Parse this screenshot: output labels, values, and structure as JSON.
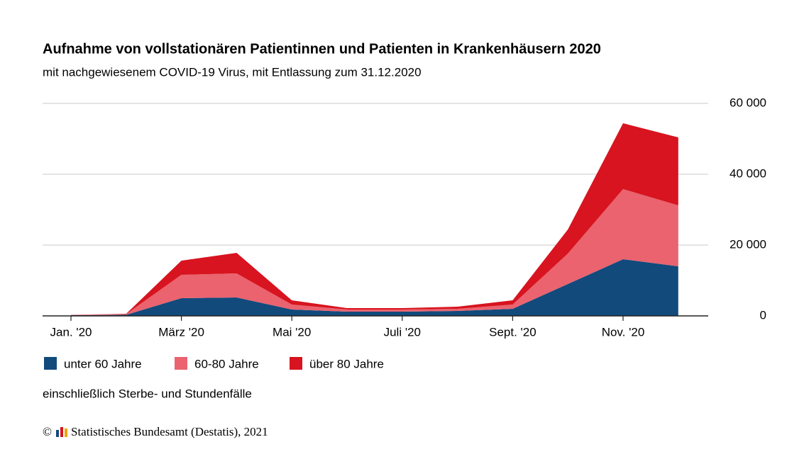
{
  "chart_data": {
    "type": "stacked_area",
    "title": "Aufnahme von vollstationären Patientinnen und Patienten in Krankenhäusern 2020",
    "subtitle": "mit nachgewiesenem COVID-19 Virus, mit Entlassung zum 31.12.2020",
    "categories": [
      "Jan. '20",
      null,
      "März '20",
      null,
      "Mai '20",
      null,
      "Juli '20",
      null,
      "Sept. '20",
      null,
      "Nov. '20",
      null
    ],
    "series": [
      {
        "name": "unter 60 Jahre",
        "color": "#124a7c",
        "values": [
          200,
          300,
          5000,
          5200,
          1800,
          1200,
          1200,
          1400,
          2000,
          9000,
          16000,
          14000
        ]
      },
      {
        "name": "60-80 Jahre",
        "color": "#ea636f",
        "values": [
          100,
          200,
          6600,
          6800,
          1400,
          600,
          600,
          600,
          1200,
          8600,
          19800,
          17200
        ]
      },
      {
        "name": "über 80 Jahre",
        "color": "#d7141f",
        "values": [
          0,
          100,
          4000,
          5800,
          1200,
          400,
          400,
          600,
          1200,
          6800,
          18600,
          19200
        ]
      }
    ],
    "ylim": [
      0,
      60000
    ],
    "yticks": [
      0,
      {
        "value": 20000,
        "label": "20 000"
      },
      {
        "value": 40000,
        "label": "40 000"
      },
      {
        "value": 60000,
        "label": "60 000"
      }
    ],
    "grid": true,
    "note": "einschließlich Sterbe- und Stundenfälle",
    "source": "Statistisches Bundesamt (Destatis), 2021"
  }
}
